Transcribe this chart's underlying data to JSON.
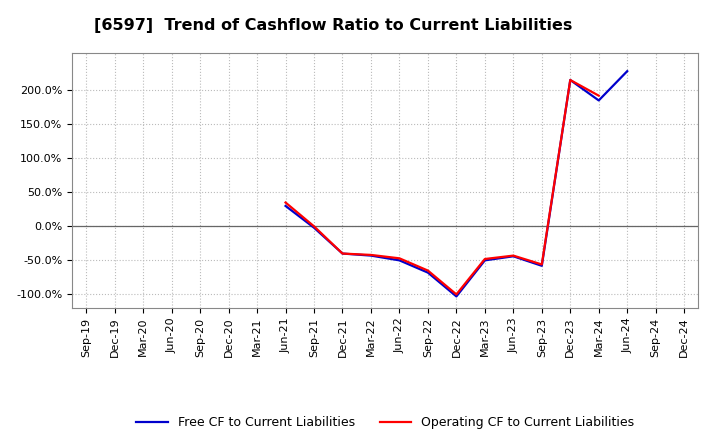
{
  "title": "[6597]  Trend of Cashflow Ratio to Current Liabilities",
  "x_labels": [
    "Sep-19",
    "Dec-19",
    "Mar-20",
    "Jun-20",
    "Sep-20",
    "Dec-20",
    "Mar-21",
    "Jun-21",
    "Sep-21",
    "Dec-21",
    "Mar-22",
    "Jun-22",
    "Sep-22",
    "Dec-22",
    "Mar-23",
    "Jun-23",
    "Sep-23",
    "Dec-23",
    "Mar-24",
    "Jun-24",
    "Sep-24",
    "Dec-24"
  ],
  "operating_cf": [
    null,
    null,
    null,
    null,
    null,
    null,
    null,
    35.0,
    0.0,
    -40.0,
    -42.0,
    -47.0,
    -65.0,
    -100.0,
    -48.0,
    -43.0,
    -56.0,
    215.0,
    192.0,
    null,
    null,
    null
  ],
  "free_cf": [
    null,
    null,
    null,
    null,
    null,
    null,
    null,
    30.0,
    -2.0,
    -40.0,
    -43.0,
    -50.0,
    -68.0,
    -103.0,
    -50.0,
    -44.0,
    -58.0,
    215.0,
    185.0,
    228.0,
    null,
    null
  ],
  "operating_color": "#ff0000",
  "free_color": "#0000cc",
  "background_color": "#ffffff",
  "plot_bg_color": "#ffffff",
  "grid_color": "#bbbbbb",
  "ylim": [
    -120,
    255
  ],
  "yticks": [
    -100.0,
    -50.0,
    0.0,
    50.0,
    100.0,
    150.0,
    200.0
  ],
  "zero_line_color": "#666666",
  "line_width": 1.6,
  "title_fontsize": 11.5,
  "legend_fontsize": 9,
  "tick_fontsize": 8
}
